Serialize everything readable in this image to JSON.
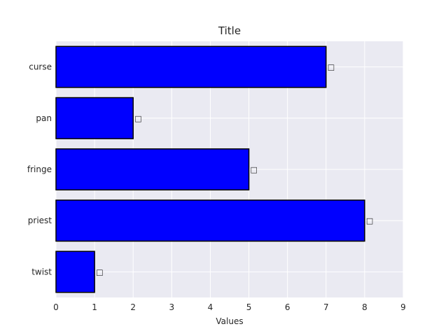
{
  "chart_data": {
    "type": "bar",
    "orientation": "horizontal",
    "title": "Title",
    "xlabel": "Values",
    "ylabel": "",
    "categories": [
      "curse",
      "pan",
      "fringe",
      "priest",
      "twist"
    ],
    "values": [
      7,
      2,
      5,
      8,
      1
    ],
    "data_labels": [
      "□",
      "□",
      "□",
      "□",
      "□"
    ],
    "xlim": [
      0,
      9
    ],
    "xticks": [
      "0",
      "1",
      "2",
      "3",
      "4",
      "5",
      "6",
      "7",
      "8",
      "9"
    ],
    "grid": true,
    "legend": "none",
    "colors": {
      "bar_fill": "#0000ff",
      "bar_edge": "#000000",
      "plot_background": "#eaeaf2",
      "grid": "#ffffff"
    }
  }
}
